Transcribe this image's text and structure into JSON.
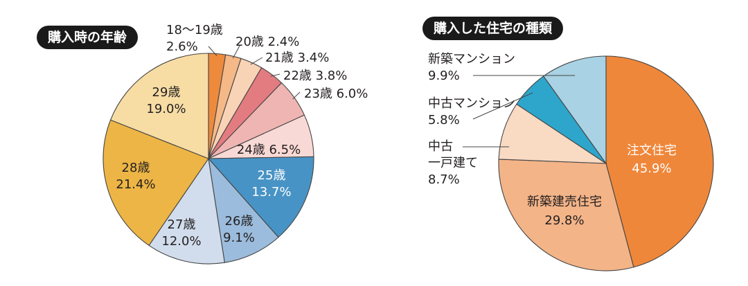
{
  "chart_data": [
    {
      "type": "pie",
      "title": "購入時の年齢",
      "categories": [
        "18〜19歳",
        "20歳",
        "21歳",
        "22歳",
        "23歳",
        "24歳",
        "25歳",
        "26歳",
        "27歳",
        "28歳",
        "29歳"
      ],
      "values": [
        2.6,
        2.4,
        3.4,
        3.8,
        6.0,
        6.5,
        13.7,
        9.1,
        12.0,
        21.4,
        19.0
      ],
      "value_labels": [
        "2.6%",
        "2.4%",
        "3.4%",
        "3.8%",
        "6.0%",
        "6.5%",
        "13.7%",
        "9.1%",
        "12.0%",
        "21.4%",
        "19.0%"
      ],
      "colors": [
        "#ee8a3c",
        "#f5b887",
        "#f9d3b6",
        "#e27c80",
        "#efb5b2",
        "#f9d9d5",
        "#4893c5",
        "#9bbcdc",
        "#d1ddec",
        "#edb545",
        "#f7dca4"
      ]
    },
    {
      "type": "pie",
      "title": "購入した住宅の種類",
      "categories": [
        "注文住宅",
        "新築建売住宅",
        "中古 一戸建て",
        "中古マンション",
        "新築マンション"
      ],
      "label_lines": [
        [
          "注文住宅"
        ],
        [
          "新築建売住宅"
        ],
        [
          "中古",
          "一戸建て"
        ],
        [
          "中古マンション"
        ],
        [
          "新築マンション"
        ]
      ],
      "values": [
        45.9,
        29.8,
        8.7,
        5.8,
        9.9
      ],
      "value_labels": [
        "45.9%",
        "29.8%",
        "8.7%",
        "5.8%",
        "9.9%"
      ],
      "colors": [
        "#ef873a",
        "#f3b488",
        "#f9dac3",
        "#2ea6cc",
        "#a9d2e4"
      ]
    }
  ]
}
